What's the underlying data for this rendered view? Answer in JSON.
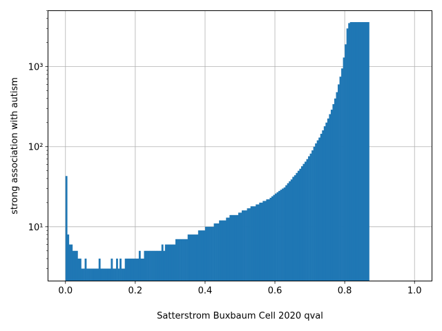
{
  "chart_data": {
    "type": "bar",
    "title": "",
    "xlabel": "Satterstrom Buxbaum Cell 2020 qval",
    "ylabel": "strong association with autism",
    "xlim": [
      -0.05,
      1.05
    ],
    "ylim": [
      2.1,
      5000
    ],
    "yscale": "log",
    "grid": true,
    "bar_color": "#1f77b4",
    "bin_width": 0.005,
    "x_ticks": [
      0.0,
      0.2,
      0.4,
      0.6,
      0.8,
      1.0
    ],
    "x_tick_labels": [
      "0.0",
      "0.2",
      "0.4",
      "0.6",
      "0.8",
      "1.0"
    ],
    "y_ticks": [
      10,
      100,
      1000
    ],
    "y_tick_labels": [
      "10¹",
      "10²",
      "10³"
    ],
    "bins_start": [
      0.0,
      0.005,
      0.01,
      0.015,
      0.02,
      0.025,
      0.03,
      0.035,
      0.04,
      0.045,
      0.05,
      0.055,
      0.06,
      0.065,
      0.07,
      0.075,
      0.08,
      0.085,
      0.09,
      0.095,
      0.1,
      0.105,
      0.11,
      0.115,
      0.12,
      0.125,
      0.13,
      0.135,
      0.14,
      0.145,
      0.15,
      0.155,
      0.16,
      0.165,
      0.17,
      0.175,
      0.18,
      0.185,
      0.19,
      0.195,
      0.2,
      0.205,
      0.21,
      0.215,
      0.22,
      0.225,
      0.23,
      0.235,
      0.24,
      0.245,
      0.25,
      0.255,
      0.26,
      0.265,
      0.27,
      0.275,
      0.28,
      0.285,
      0.29,
      0.295,
      0.3,
      0.305,
      0.31,
      0.315,
      0.32,
      0.325,
      0.33,
      0.335,
      0.34,
      0.345,
      0.35,
      0.355,
      0.36,
      0.365,
      0.37,
      0.375,
      0.38,
      0.385,
      0.39,
      0.395,
      0.4,
      0.405,
      0.41,
      0.415,
      0.42,
      0.425,
      0.43,
      0.435,
      0.44,
      0.445,
      0.45,
      0.455,
      0.46,
      0.465,
      0.47,
      0.475,
      0.48,
      0.485,
      0.49,
      0.495,
      0.5,
      0.505,
      0.51,
      0.515,
      0.52,
      0.525,
      0.53,
      0.535,
      0.54,
      0.545,
      0.55,
      0.555,
      0.56,
      0.565,
      0.57,
      0.575,
      0.58,
      0.585,
      0.59,
      0.595,
      0.6,
      0.605,
      0.61,
      0.615,
      0.62,
      0.625,
      0.63,
      0.635,
      0.64,
      0.645,
      0.65,
      0.655,
      0.66,
      0.665,
      0.67,
      0.675,
      0.68,
      0.685,
      0.69,
      0.695,
      0.7,
      0.705,
      0.71,
      0.715,
      0.72,
      0.725,
      0.73,
      0.735,
      0.74,
      0.745,
      0.75,
      0.755,
      0.76,
      0.765,
      0.77,
      0.775,
      0.78,
      0.785,
      0.79,
      0.795,
      0.8,
      0.805,
      0.81,
      0.815,
      0.82,
      0.825,
      0.83,
      0.835,
      0.84,
      0.845,
      0.85,
      0.855,
      0.86,
      0.865,
      0.87,
      0.875,
      0.88,
      0.885,
      0.89,
      0.895,
      0.9,
      0.905,
      0.91,
      0.915,
      0.92,
      0.925
    ],
    "values": [
      43,
      8,
      6,
      6,
      5,
      5,
      5,
      4,
      4,
      3,
      3,
      4,
      3,
      3,
      3,
      3,
      3,
      3,
      3,
      4,
      3,
      3,
      3,
      3,
      3,
      3,
      4,
      3,
      3,
      4,
      3,
      4,
      3,
      3,
      4,
      4,
      4,
      4,
      4,
      4,
      4,
      4,
      5,
      4,
      4,
      5,
      5,
      5,
      5,
      5,
      5,
      5,
      5,
      5,
      5,
      6,
      5,
      6,
      6,
      6,
      6,
      6,
      6,
      7,
      7,
      7,
      7,
      7,
      7,
      7,
      8,
      8,
      8,
      8,
      8,
      8,
      9,
      9,
      9,
      9,
      10,
      10,
      10,
      10,
      10,
      11,
      11,
      11,
      12,
      12,
      12,
      12,
      13,
      13,
      14,
      14,
      14,
      14,
      14,
      15,
      15,
      16,
      16,
      16,
      17,
      17,
      18,
      18,
      18,
      19,
      19,
      20,
      20,
      21,
      21,
      22,
      22,
      23,
      24,
      25,
      26,
      27,
      28,
      29,
      30,
      31,
      33,
      35,
      37,
      39,
      42,
      44,
      47,
      50,
      53,
      57,
      61,
      65,
      70,
      76,
      82,
      90,
      100,
      110,
      120,
      130,
      145,
      160,
      180,
      200,
      225,
      255,
      290,
      340,
      400,
      480,
      600,
      750,
      950,
      1300,
      1900,
      3000,
      3500,
      3600,
      3600,
      3600,
      3600,
      3600,
      3600,
      3600,
      3600,
      3600,
      3600,
      3600
    ]
  }
}
